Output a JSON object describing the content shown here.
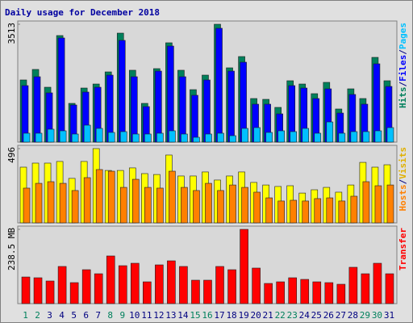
{
  "chart_data": {
    "type": "bar",
    "title": "Daily usage for December 2018",
    "categories": [
      "1",
      "2",
      "3",
      "4",
      "5",
      "6",
      "7",
      "8",
      "9",
      "10",
      "11",
      "12",
      "13",
      "14",
      "15",
      "16",
      "17",
      "18",
      "19",
      "20",
      "21",
      "22",
      "23",
      "24",
      "25",
      "26",
      "27",
      "28",
      "29",
      "30",
      "31"
    ],
    "category_colors": [
      "#00805c",
      "#00805c",
      "#000080",
      "#000080",
      "#000080",
      "#000080",
      "#000080",
      "#00805c",
      "#00805c",
      "#000080",
      "#000080",
      "#000080",
      "#000080",
      "#000080",
      "#00805c",
      "#00805c",
      "#000080",
      "#000080",
      "#000080",
      "#000080",
      "#000080",
      "#00805c",
      "#00805c",
      "#000080",
      "#000080",
      "#000080",
      "#000080",
      "#000080",
      "#00805c",
      "#00805c",
      "#000080"
    ],
    "legend_separator": "/",
    "panels": [
      {
        "ylim": [
          0,
          3513
        ],
        "yticks": [
          3513
        ],
        "legend_reversed": false,
        "series": [
          {
            "name": "Hits",
            "color": "#00805c",
            "values": [
              1853,
              2166,
              1636,
              3176,
              1155,
              1612,
              1732,
              2093,
              3248,
              2142,
              1155,
              2190,
              2960,
              2142,
              1564,
              1997,
              3513,
              2214,
              2550,
              1299,
              1275,
              1035,
              1829,
              1732,
              1444,
              1781,
              987,
              1588,
              1299,
              2526,
              1829
            ]
          },
          {
            "name": "Files",
            "color": "#0000ff",
            "values": [
              1684,
              1949,
              1468,
              3104,
              1107,
              1492,
              1636,
              1997,
              3032,
              1949,
              1059,
              2117,
              2863,
              1949,
              1396,
              1853,
              3393,
              2117,
              2382,
              1131,
              1131,
              842,
              1684,
              1612,
              1299,
              1588,
              866,
              1420,
              1131,
              2334,
              1660
            ]
          },
          {
            "name": "Pages",
            "color": "#00c0ff",
            "values": [
              265,
              265,
              385,
              337,
              241,
              505,
              409,
              289,
              313,
              241,
              241,
              265,
              337,
              241,
              144,
              241,
              265,
              192,
              409,
              433,
              289,
              337,
              313,
              409,
              265,
              601,
              265,
              313,
              313,
              337,
              433
            ]
          }
        ]
      },
      {
        "ylim": [
          0,
          496
        ],
        "yticks": [
          496
        ],
        "legend_reversed": true,
        "series": [
          {
            "name": "Visits",
            "color": "#ffff00",
            "text_color": "#e0b000",
            "values": [
              372,
              399,
              399,
              410,
              297,
              410,
              496,
              350,
              350,
              367,
              329,
              323,
              453,
              313,
              313,
              340,
              286,
              313,
              340,
              270,
              253,
              243,
              248,
              199,
              221,
              237,
              205,
              253,
              404,
              372,
              388
            ]
          },
          {
            "name": "Hosts",
            "color": "#ff8000",
            "text_color": "#ff8000",
            "values": [
              232,
              264,
              275,
              264,
              216,
              302,
              356,
              345,
              237,
              291,
              237,
              232,
              345,
              237,
              216,
              264,
              216,
              253,
              237,
              205,
              167,
              146,
              151,
              146,
              162,
              167,
              146,
              178,
              275,
              248,
              253
            ]
          }
        ]
      },
      {
        "ylim": [
          0,
          238.5
        ],
        "yticks": [
          {
            "value": 238.5,
            "label": "238.5 MB"
          }
        ],
        "legend_reversed": false,
        "series": [
          {
            "name": "Transfer",
            "color": "#ff0000",
            "values": [
              85.5,
              83,
              72.6,
              119.3,
              67.4,
              108.9,
              95.9,
              153,
              121.8,
              129.6,
              70,
              124.4,
              137.4,
              119.3,
              75.2,
              75.2,
              119.3,
              108.9,
              238.5,
              114.1,
              64.8,
              70,
              83,
              77.8,
              70,
              67.4,
              62.2,
              116.7,
              95.9,
              129.6,
              95.9
            ]
          }
        ]
      }
    ]
  }
}
